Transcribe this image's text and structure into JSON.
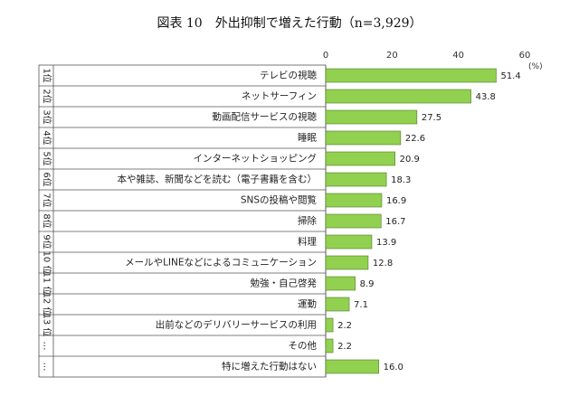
{
  "chart_data": {
    "type": "bar",
    "orientation": "horizontal",
    "title": "図表 10　外出抑制で増えた行動（n=3,929）",
    "unit_label": "(%)",
    "xlim": [
      0,
      60
    ],
    "ticks": [
      0,
      20,
      40,
      60
    ],
    "bar_color": "#92d050",
    "grid": false,
    "categories": [
      "テレビの視聴",
      "ネットサーフィン",
      "動画配信サービスの視聴",
      "睡眠",
      "インターネットショッピング",
      "本や雑誌、新聞などを読む（電子書籍を含む）",
      "SNSの投稿や閲覧",
      "掃除",
      "料理",
      "メールやLINEなどによるコミュニケーション",
      "勉強・自己啓発",
      "運動",
      "出前などのデリバリーサービスの利用",
      "その他",
      "特に増えた行動はない"
    ],
    "ranks": [
      "1位",
      "2位",
      "3位",
      "4位",
      "5位",
      "6位",
      "7位",
      "8位",
      "9位",
      "10 位",
      "11 位",
      "12 位",
      "13 位",
      "…",
      "…"
    ],
    "values": [
      51.4,
      43.8,
      27.5,
      22.6,
      20.9,
      18.3,
      16.9,
      16.7,
      13.9,
      12.8,
      8.9,
      7.1,
      2.2,
      2.2,
      16.0
    ],
    "value_labels": [
      "51.4",
      "43.8",
      "27.5",
      "22.6",
      "20.9",
      "18.3",
      "16.9",
      "16.7",
      "13.9",
      "12.8",
      "8.9",
      "7.1",
      "2.2",
      "2.2",
      "16.0"
    ]
  }
}
